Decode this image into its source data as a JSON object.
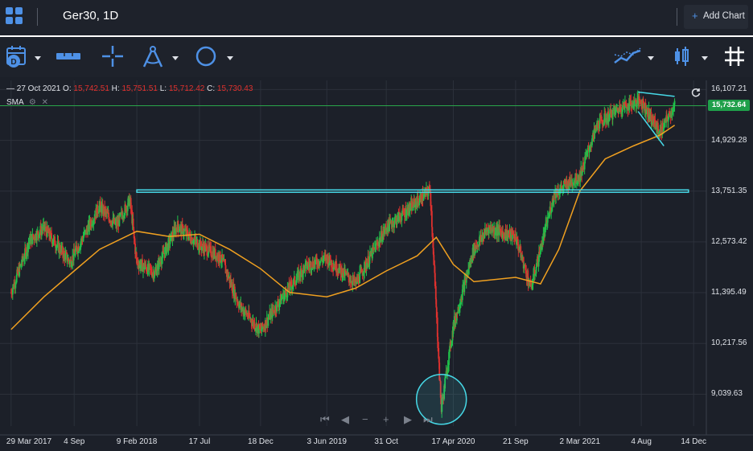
{
  "tab": {
    "title": "Ger30, 1D"
  },
  "header": {
    "add_chart_label": "Add Chart",
    "plus": "+"
  },
  "toolbar": {
    "icons": [
      "calendar-icon",
      "measure-icon",
      "crosshair-icon",
      "drawing-compass-icon",
      "circle-shape-icon",
      "indicators-icon",
      "candlestick-type-icon",
      "grid-toggle-icon"
    ]
  },
  "legend": {
    "date": "27 Oct 2021",
    "o_label": "O:",
    "o": "15,742.51",
    "h_label": "H:",
    "h": "15,751.51",
    "l_label": "L:",
    "l": "15,712.42",
    "c_label": "C:",
    "c": "15,730.43",
    "sma_label": "SMA"
  },
  "price_badge": "15,732.64",
  "colors": {
    "up": "#1fc24a",
    "down": "#e0312e",
    "sma": "#f0a020",
    "annotation": "#46d8e6",
    "current_line": "#2aa64a",
    "badge": "#1f9f4a"
  },
  "chart_data": {
    "type": "line",
    "symbol": "Ger30",
    "interval": "1D",
    "x_labels": [
      "29 Mar 2017",
      "4 Sep",
      "9 Feb 2018",
      "17 Jul",
      "18 Dec",
      "3 Jun 2019",
      "31 Oct",
      "17 Apr 2020",
      "21 Sep",
      "2 Mar 2021",
      "4 Aug",
      "14 Dec"
    ],
    "y_ticks": [
      "16,107.21",
      "14,929.28",
      "13,751.35",
      "12,573.42",
      "11,395.49",
      "10,217.56",
      "9,039.63"
    ],
    "y_tick_values": [
      16107.21,
      14929.28,
      13751.35,
      12573.42,
      11395.49,
      10217.56,
      9039.63
    ],
    "ylim": [
      8300,
      16320
    ],
    "current_price": 15732.64,
    "series": [
      {
        "kind": "close",
        "x": [
          "2017-03-29",
          "2017-05-15",
          "2017-06-20",
          "2017-08-25",
          "2017-11-07",
          "2017-12-20",
          "2018-01-23",
          "2018-02-09",
          "2018-03-26",
          "2018-05-22",
          "2018-07-17",
          "2018-09-10",
          "2018-10-26",
          "2018-12-18",
          "2019-01-28",
          "2019-04-10",
          "2019-06-03",
          "2019-08-15",
          "2019-10-31",
          "2020-01-17",
          "2020-02-19",
          "2020-03-18",
          "2020-04-17",
          "2020-06-08",
          "2020-07-15",
          "2020-09-21",
          "2020-10-30",
          "2020-12-28",
          "2021-03-02",
          "2021-04-16",
          "2021-06-14",
          "2021-08-04",
          "2021-09-20",
          "2021-10-27"
        ],
        "y": [
          11400,
          12600,
          12900,
          12100,
          13400,
          12950,
          13560,
          12100,
          11850,
          12950,
          12500,
          12200,
          11100,
          10500,
          11100,
          12000,
          12200,
          11600,
          12900,
          13500,
          13780,
          8700,
          10600,
          12400,
          12900,
          12700,
          11500,
          13700,
          14100,
          15300,
          15700,
          15850,
          15100,
          15730
        ]
      },
      {
        "kind": "sma",
        "x": [
          "2017-03-29",
          "2017-06-20",
          "2017-09-04",
          "2017-11-07",
          "2018-02-09",
          "2018-05-01",
          "2018-07-17",
          "2018-10-01",
          "2018-12-18",
          "2019-03-01",
          "2019-06-03",
          "2019-08-15",
          "2019-10-31",
          "2020-01-17",
          "2020-03-05",
          "2020-04-17",
          "2020-06-08",
          "2020-09-21",
          "2020-11-23",
          "2021-01-08",
          "2021-03-02",
          "2021-05-05",
          "2021-07-15",
          "2021-09-20",
          "2021-10-27"
        ],
        "y": [
          10540,
          11300,
          11900,
          12400,
          12820,
          12700,
          12750,
          12400,
          11950,
          11400,
          11300,
          11500,
          11900,
          12250,
          12680,
          12050,
          11650,
          11750,
          11600,
          12400,
          13750,
          14500,
          14800,
          15050,
          15280
        ]
      }
    ],
    "annotations": [
      {
        "type": "horizontal-band",
        "y": [
          13730,
          13780
        ],
        "x": [
          "2018-02-09",
          "2021-12-01"
        ]
      },
      {
        "type": "circle",
        "center": [
          "2020-03-18",
          8920
        ]
      },
      {
        "type": "trendline",
        "x": [
          "2021-07-27",
          "2021-10-27"
        ],
        "y": [
          16050,
          15950
        ]
      },
      {
        "type": "trendline",
        "x": [
          "2021-07-27",
          "2021-09-30"
        ],
        "y": [
          15600,
          14800
        ]
      }
    ]
  }
}
